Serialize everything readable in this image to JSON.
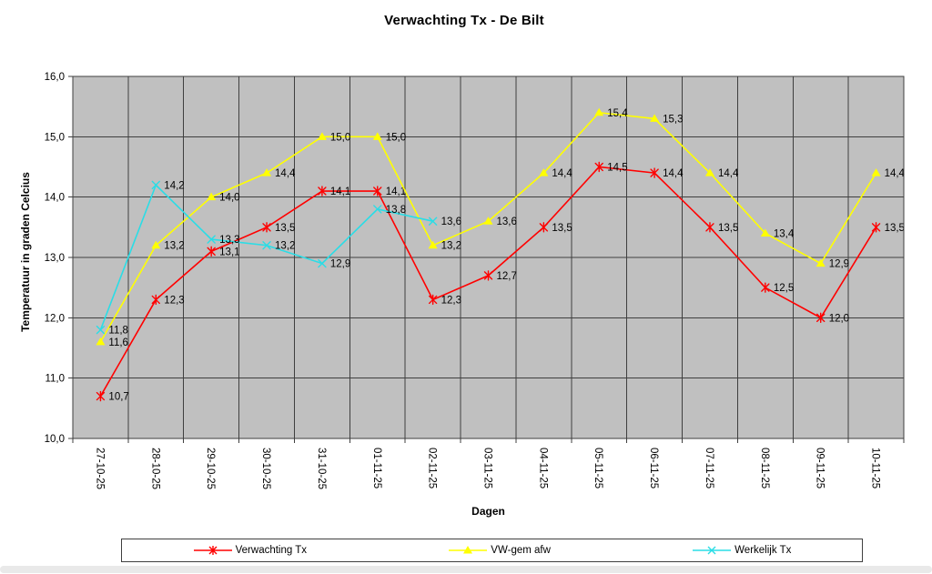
{
  "title": "Verwachting Tx - De Bilt",
  "x_axis_title": "Dagen",
  "y_axis_title": "Temperatuur in graden Celcius",
  "chart_data": {
    "type": "line",
    "categories": [
      "27-10-25",
      "28-10-25",
      "29-10-25",
      "30-10-25",
      "31-10-25",
      "01-11-25",
      "02-11-25",
      "03-11-25",
      "04-11-25",
      "05-11-25",
      "06-11-25",
      "07-11-25",
      "08-11-25",
      "09-11-25",
      "10-11-25"
    ],
    "series": [
      {
        "name": "Verwachting Tx",
        "color": "#ff0000",
        "marker": "star",
        "values": [
          10.7,
          12.3,
          13.1,
          13.5,
          14.1,
          14.1,
          12.3,
          12.7,
          13.5,
          14.5,
          14.4,
          13.5,
          12.5,
          12.0,
          13.5
        ]
      },
      {
        "name": "VW-gem afw",
        "color": "#ffff00",
        "marker": "triangle",
        "values": [
          11.6,
          13.2,
          14.0,
          14.4,
          15.0,
          15.0,
          13.2,
          13.6,
          14.4,
          15.4,
          15.3,
          14.4,
          13.4,
          12.9,
          14.4
        ]
      },
      {
        "name": "Werkelijk Tx",
        "color": "#2adde6",
        "marker": "x",
        "values": [
          11.8,
          14.2,
          13.3,
          13.2,
          12.9,
          13.8,
          13.6
        ]
      }
    ],
    "ylim": [
      10.0,
      16.0
    ],
    "y_tick_step": 1.0,
    "y_tick_labels": [
      "10,0",
      "11,0",
      "12,0",
      "13,0",
      "14,0",
      "15,0",
      "16,0"
    ],
    "data_labels": true,
    "decimal_separator": ",",
    "grid": true,
    "legend_position": "bottom"
  },
  "colors": {
    "plot_background": "#c0c0c0",
    "gridline": "#3f3f3f",
    "axis": "#3f3f3f",
    "label_text": "#000000",
    "page_background": "#ffffff",
    "bottom_strip": "#e9e9e9"
  },
  "legend": {
    "entries": [
      {
        "label": "Verwachting Tx",
        "icon": "star-line-marker-icon"
      },
      {
        "label": "VW-gem afw",
        "icon": "triangle-line-marker-icon"
      },
      {
        "label": "Werkelijk Tx",
        "icon": "x-line-marker-icon"
      }
    ]
  }
}
